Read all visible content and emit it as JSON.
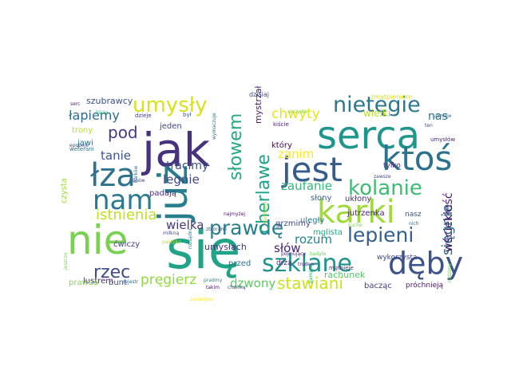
{
  "words": [
    {
      "t": "się",
      "c": "#20a386"
    },
    {
      "t": "nie",
      "c": "#7ad151"
    },
    {
      "t": "jak",
      "c": "#46327e"
    },
    {
      "t": "już",
      "c": "#277f8e"
    },
    {
      "t": "serca",
      "c": "#1f968b"
    },
    {
      "t": "jest",
      "c": "#365c8d"
    },
    {
      "t": "łza",
      "c": "#2c728e"
    },
    {
      "t": "nam",
      "c": "#2a788e"
    },
    {
      "t": "ktoś",
      "c": "#2c728e"
    },
    {
      "t": "karki",
      "c": "#a0da39"
    },
    {
      "t": "dęby",
      "c": "#3b528b"
    },
    {
      "t": "szklane",
      "c": "#21918c"
    },
    {
      "t": "nietęgie",
      "c": "#2a788e"
    },
    {
      "t": "umysły",
      "c": "#d8e219"
    },
    {
      "t": "prawdę",
      "c": "#287d8e"
    },
    {
      "t": "kolanie",
      "c": "#3dbc74"
    },
    {
      "t": "lepieni",
      "c": "#355f8d"
    },
    {
      "t": "cherlawe",
      "c": "#1fa287"
    },
    {
      "t": "słowem",
      "c": "#22a884"
    },
    {
      "t": "stawiani",
      "c": "#cde11d"
    },
    {
      "t": "istnienia",
      "c": "#bddf26"
    },
    {
      "t": "rzec",
      "c": "#3e4a89"
    },
    {
      "t": "pod",
      "c": "#443983"
    },
    {
      "t": "chwyty",
      "c": "#e5e419"
    },
    {
      "t": "pręgierz",
      "c": "#8fd744"
    },
    {
      "t": "dzwony",
      "c": "#5ec962"
    },
    {
      "t": "sięgnie",
      "c": "#2e6f8e"
    },
    {
      "t": "wściekłość",
      "c": "#48186a"
    },
    {
      "t": "łapiemy",
      "c": "#2f6c8e"
    },
    {
      "t": "tracimy",
      "c": "#3b528b"
    },
    {
      "t": "legnie",
      "c": "#414487"
    },
    {
      "t": "tanie",
      "c": "#3b528b"
    },
    {
      "t": "wielka",
      "c": "#453781"
    },
    {
      "t": "zanim",
      "c": "#fde725"
    },
    {
      "t": "zaufanie",
      "c": "#35b779"
    },
    {
      "t": "rozum",
      "c": "#26828e"
    },
    {
      "t": "słów",
      "c": "#482475"
    },
    {
      "t": "nas",
      "c": "#2a788e"
    },
    {
      "t": "rachunek",
      "c": "#52c569"
    },
    {
      "t": "umysłach",
      "c": "#46307e"
    },
    {
      "t": "lustrem",
      "c": "#482475"
    },
    {
      "t": "szubrawcy",
      "c": "#3b528b"
    },
    {
      "t": "trony",
      "c": "#b5de2b"
    },
    {
      "t": "jeden",
      "c": "#3e4989"
    },
    {
      "t": "przed",
      "c": "#2e6e8e"
    },
    {
      "t": "ćwiczy",
      "c": "#414487"
    },
    {
      "t": "prawda",
      "c": "#7fd34e"
    },
    {
      "t": "bunt",
      "c": "#3b528b"
    },
    {
      "t": "bacząc",
      "c": "#433e85"
    },
    {
      "t": "próchnieją",
      "c": "#481668"
    },
    {
      "t": "uległy",
      "c": "#2a788e"
    },
    {
      "t": "grzmimy",
      "c": "#3e4989"
    },
    {
      "t": "jutrzenka",
      "c": "#482475"
    },
    {
      "t": "nasz",
      "c": "#3b528b"
    },
    {
      "t": "słony",
      "c": "#33638d"
    },
    {
      "t": "ukłony",
      "c": "#46327e"
    },
    {
      "t": "mglista",
      "c": "#22a884"
    },
    {
      "t": "wykorzysta",
      "c": "#3f4788"
    },
    {
      "t": "drżą",
      "c": "#482878"
    },
    {
      "t": "wielki",
      "c": "#b5de2b"
    },
    {
      "t": "mystrzał",
      "c": "#481a6c"
    },
    {
      "t": "który",
      "c": "#440154"
    },
    {
      "t": "tylko",
      "c": "#472d7b"
    },
    {
      "t": "czysta",
      "c": "#a0da39"
    },
    {
      "t": "padają",
      "c": "#46307e"
    },
    {
      "t": "jawi",
      "c": "#2a788e"
    },
    {
      "t": "dzisiaj",
      "c": "#404688"
    },
    {
      "t": "zmatpieniem",
      "c": "#d8e219"
    },
    {
      "t": "umysłów",
      "c": "#472a7a"
    },
    {
      "t": "uśmieje",
      "c": "#2d708e"
    },
    {
      "t": "wymaczuje",
      "c": "#2c728e"
    },
    {
      "t": "kiście",
      "c": "#482173"
    },
    {
      "t": "był",
      "c": "#39568c"
    },
    {
      "t": "dzieje",
      "c": "#443b84"
    },
    {
      "t": "serc",
      "c": "#482071"
    },
    {
      "t": "epopeje",
      "c": "#3b528b"
    },
    {
      "t": "weterani",
      "c": "#2c728e"
    },
    {
      "t": "jeszcze",
      "c": "#77d153"
    },
    {
      "t": "sadzawki",
      "c": "#addc30"
    },
    {
      "t": "zawsze",
      "c": "#3d4d8a"
    },
    {
      "t": "skrzydła",
      "c": "#84d44b"
    },
    {
      "t": "nich",
      "c": "#2f6b8e"
    },
    {
      "t": "suche",
      "c": "#7ad151"
    },
    {
      "t": "mętnieje",
      "c": "#46337f"
    },
    {
      "t": "badyle",
      "c": "#6ccd5a"
    },
    {
      "t": "truden",
      "c": "#46307e"
    },
    {
      "t": "pojmujący",
      "c": "#482173"
    },
    {
      "t": "pamięci",
      "c": "#31b57b"
    },
    {
      "t": "najmyżej",
      "c": "#471365"
    },
    {
      "t": "zbiorami",
      "c": "#3b528b"
    },
    {
      "t": "pradmy",
      "c": "#24878e"
    },
    {
      "t": "chwilką",
      "c": "#3e4a89"
    },
    {
      "t": "takim",
      "c": "#471063"
    },
    {
      "t": "zasiedzeń",
      "c": "#fde725"
    },
    {
      "t": "milkną",
      "c": "#3f4788"
    },
    {
      "t": "pastyką",
      "c": "#b8de29"
    },
    {
      "t": "rozsądni",
      "c": "#297b8e"
    },
    {
      "t": "rejestr",
      "c": "#2e6e8e"
    },
    {
      "t": "karków",
      "c": "#2c728e"
    },
    {
      "t": "śnów",
      "c": "#404387"
    },
    {
      "t": "liście",
      "c": "#26ad81"
    },
    {
      "t": "ten",
      "c": "#3f4889"
    },
    {
      "t": "rodzimy",
      "c": "#65cb5e"
    }
  ]
}
